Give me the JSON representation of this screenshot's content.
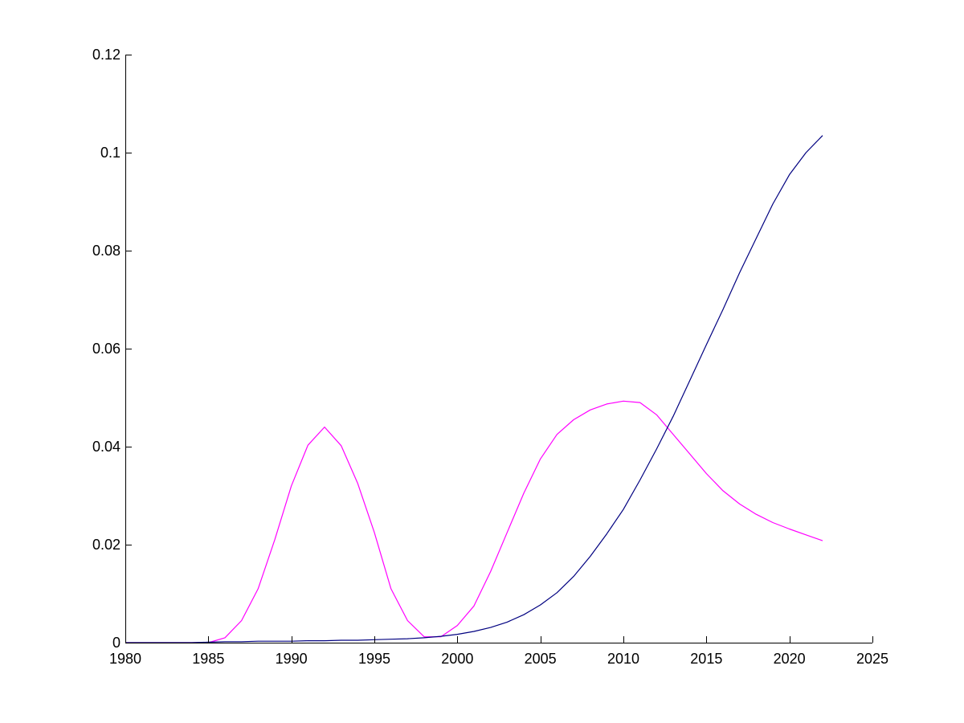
{
  "chart_data": {
    "type": "line",
    "title": "",
    "xlabel": "",
    "ylabel": "",
    "xlim": [
      1980,
      2025
    ],
    "ylim": [
      0,
      0.12
    ],
    "grid": false,
    "x_ticks": [
      1980,
      1985,
      1990,
      1995,
      2000,
      2005,
      2010,
      2015,
      2020,
      2025
    ],
    "y_ticks": [
      0,
      0.02,
      0.04,
      0.06,
      0.08,
      0.1,
      0.12
    ],
    "x_tick_labels": [
      "1980",
      "1985",
      "1990",
      "1995",
      "2000",
      "2005",
      "2010",
      "2015",
      "2020",
      "2025"
    ],
    "y_tick_labels": [
      "0",
      "0.02",
      "0.04",
      "0.06",
      "0.08",
      "0.1",
      "0.12"
    ],
    "series": [
      {
        "color": "#ff00ff",
        "x": [
          1980,
          1981,
          1982,
          1983,
          1984,
          1985,
          1986,
          1987,
          1988,
          1989,
          1990,
          1991,
          1992,
          1993,
          1994,
          1995,
          1996,
          1997,
          1998,
          1999,
          2000,
          2001,
          2002,
          2003,
          2004,
          2005,
          2006,
          2007,
          2008,
          2009,
          2010,
          2011,
          2012,
          2013,
          2014,
          2015,
          2016,
          2017,
          2018,
          2019,
          2020,
          2021,
          2022
        ],
        "values": [
          0,
          0,
          0,
          0,
          0,
          0,
          0.001,
          0.0045,
          0.011,
          0.021,
          0.032,
          0.0403,
          0.044,
          0.0402,
          0.0325,
          0.0225,
          0.011,
          0.0045,
          0.0012,
          0.0012,
          0.0035,
          0.0075,
          0.0145,
          0.0225,
          0.0305,
          0.0375,
          0.0425,
          0.0455,
          0.0475,
          0.0487,
          0.0493,
          0.049,
          0.0465,
          0.0425,
          0.0385,
          0.0345,
          0.031,
          0.0283,
          0.0262,
          0.0245,
          0.0232,
          0.022,
          0.0208
        ]
      },
      {
        "color": "#000080",
        "x": [
          1980,
          1981,
          1982,
          1983,
          1984,
          1985,
          1986,
          1987,
          1988,
          1989,
          1990,
          1991,
          1992,
          1993,
          1994,
          1995,
          1996,
          1997,
          1998,
          1999,
          2000,
          2001,
          2002,
          2003,
          2004,
          2005,
          2006,
          2007,
          2008,
          2009,
          2010,
          2011,
          2012,
          2013,
          2014,
          2015,
          2016,
          2017,
          2018,
          2019,
          2020,
          2021,
          2022
        ],
        "values": [
          0,
          0,
          0,
          0,
          0,
          0.0001,
          0.0002,
          0.0002,
          0.0003,
          0.0003,
          0.0003,
          0.0004,
          0.0004,
          0.0005,
          0.0005,
          0.0006,
          0.0007,
          0.0008,
          0.001,
          0.0013,
          0.0017,
          0.0023,
          0.0031,
          0.0042,
          0.0057,
          0.0077,
          0.0102,
          0.0135,
          0.0176,
          0.0222,
          0.0272,
          0.0332,
          0.0395,
          0.0462,
          0.0535,
          0.0608,
          0.068,
          0.0755,
          0.0825,
          0.0895,
          0.0955,
          0.1,
          0.1035
        ]
      }
    ]
  }
}
